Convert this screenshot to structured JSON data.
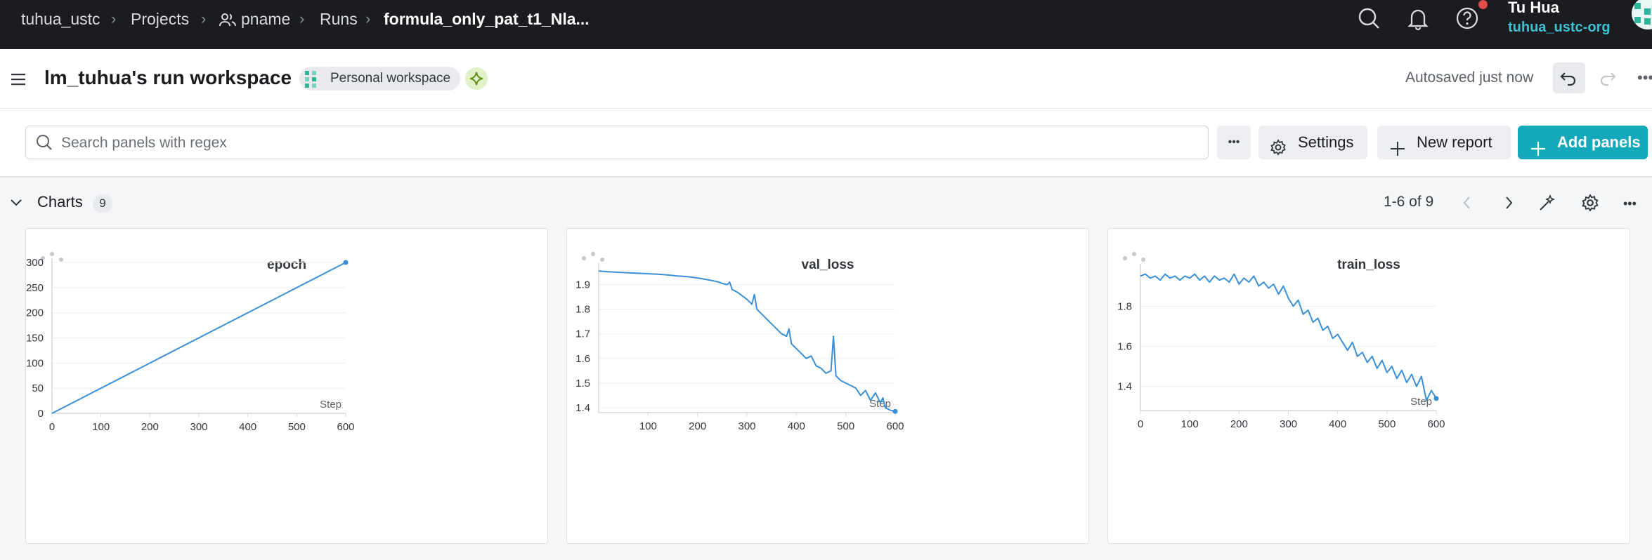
{
  "nav": {
    "breadcrumbs": [
      {
        "label": "tuhua_ustc"
      },
      {
        "label": "Projects"
      },
      {
        "label": "pname"
      },
      {
        "label": "Runs"
      },
      {
        "label": "formula_only_pat_t1_Nla..."
      }
    ],
    "user_name": "Tu Hua",
    "user_org": "tuhua_ustc-org",
    "icons": [
      "search-icon",
      "bell-icon",
      "help-icon"
    ]
  },
  "workspace": {
    "title": "lm_tuhua's run workspace",
    "badge": "Personal workspace",
    "autosave": "Autosaved just now"
  },
  "toolbar": {
    "search_placeholder": "Search panels with regex",
    "search_value": "",
    "settings_label": "Settings",
    "new_report_label": "New report",
    "add_panels_label": "Add panels",
    "accent": "#13a9ba"
  },
  "section": {
    "title": "Charts",
    "count": "9",
    "pager": "1-6 of 9"
  },
  "chart_data": [
    {
      "type": "line",
      "title": "epoch",
      "xlabel": "Step",
      "ylabel": "",
      "xlim": [
        0,
        600
      ],
      "ylim": [
        0,
        300
      ],
      "xticks": [
        0,
        100,
        200,
        300,
        400,
        500,
        600
      ],
      "yticks": [
        0,
        50,
        100,
        150,
        200,
        250,
        300
      ],
      "color": "#3a8fd7",
      "series": [
        {
          "x": [
            0,
            600
          ],
          "y": [
            0,
            300
          ]
        }
      ]
    },
    {
      "type": "line",
      "title": "val_loss",
      "xlabel": "Step",
      "ylabel": "",
      "xlim": [
        0,
        600
      ],
      "ylim": [
        1.38,
        1.97
      ],
      "xticks": [
        100,
        200,
        300,
        400,
        500,
        600
      ],
      "yticks": [
        1.4,
        1.5,
        1.6,
        1.7,
        1.8,
        1.9
      ],
      "color": "#3a8fd7",
      "series": [
        {
          "x": [
            0,
            20,
            40,
            60,
            80,
            100,
            120,
            140,
            160,
            180,
            200,
            220,
            240,
            250,
            260,
            265,
            270,
            280,
            290,
            300,
            310,
            315,
            320,
            325,
            330,
            340,
            350,
            360,
            370,
            380,
            385,
            390,
            400,
            410,
            420,
            430,
            440,
            450,
            460,
            470,
            475,
            480,
            490,
            500,
            510,
            520,
            530,
            540,
            550,
            560,
            570,
            575,
            580,
            590,
            600
          ],
          "y": [
            1.955,
            1.952,
            1.95,
            1.948,
            1.946,
            1.944,
            1.942,
            1.939,
            1.935,
            1.932,
            1.927,
            1.92,
            1.912,
            1.905,
            1.9,
            1.91,
            1.88,
            1.87,
            1.855,
            1.84,
            1.82,
            1.86,
            1.8,
            1.79,
            1.78,
            1.76,
            1.74,
            1.72,
            1.7,
            1.69,
            1.72,
            1.66,
            1.64,
            1.62,
            1.6,
            1.61,
            1.57,
            1.56,
            1.54,
            1.55,
            1.69,
            1.53,
            1.51,
            1.5,
            1.49,
            1.48,
            1.45,
            1.47,
            1.43,
            1.46,
            1.42,
            1.44,
            1.4,
            1.39,
            1.385
          ]
        }
      ]
    },
    {
      "type": "line",
      "title": "train_loss",
      "xlabel": "Step",
      "ylabel": "",
      "xlim": [
        0,
        600
      ],
      "ylim": [
        1.28,
        1.99
      ],
      "xticks": [
        0,
        100,
        200,
        300,
        400,
        500,
        600
      ],
      "yticks": [
        1.4,
        1.6,
        1.8
      ],
      "color": "#3a8fd7",
      "series": [
        {
          "x": [
            0,
            10,
            20,
            30,
            40,
            50,
            60,
            70,
            80,
            90,
            100,
            110,
            120,
            130,
            140,
            150,
            160,
            170,
            180,
            190,
            200,
            210,
            220,
            230,
            240,
            250,
            260,
            270,
            280,
            290,
            300,
            310,
            320,
            330,
            340,
            350,
            360,
            370,
            380,
            390,
            400,
            410,
            420,
            430,
            440,
            450,
            460,
            470,
            480,
            490,
            500,
            510,
            520,
            530,
            540,
            550,
            560,
            570,
            580,
            590,
            600
          ],
          "y": [
            1.95,
            1.96,
            1.94,
            1.95,
            1.93,
            1.96,
            1.94,
            1.95,
            1.93,
            1.95,
            1.94,
            1.96,
            1.93,
            1.95,
            1.92,
            1.95,
            1.93,
            1.94,
            1.92,
            1.96,
            1.91,
            1.94,
            1.92,
            1.95,
            1.9,
            1.92,
            1.89,
            1.91,
            1.86,
            1.9,
            1.84,
            1.8,
            1.83,
            1.76,
            1.78,
            1.72,
            1.74,
            1.68,
            1.7,
            1.64,
            1.66,
            1.62,
            1.58,
            1.62,
            1.55,
            1.57,
            1.52,
            1.55,
            1.49,
            1.53,
            1.47,
            1.5,
            1.44,
            1.48,
            1.42,
            1.46,
            1.4,
            1.45,
            1.33,
            1.38,
            1.34
          ]
        }
      ]
    }
  ]
}
